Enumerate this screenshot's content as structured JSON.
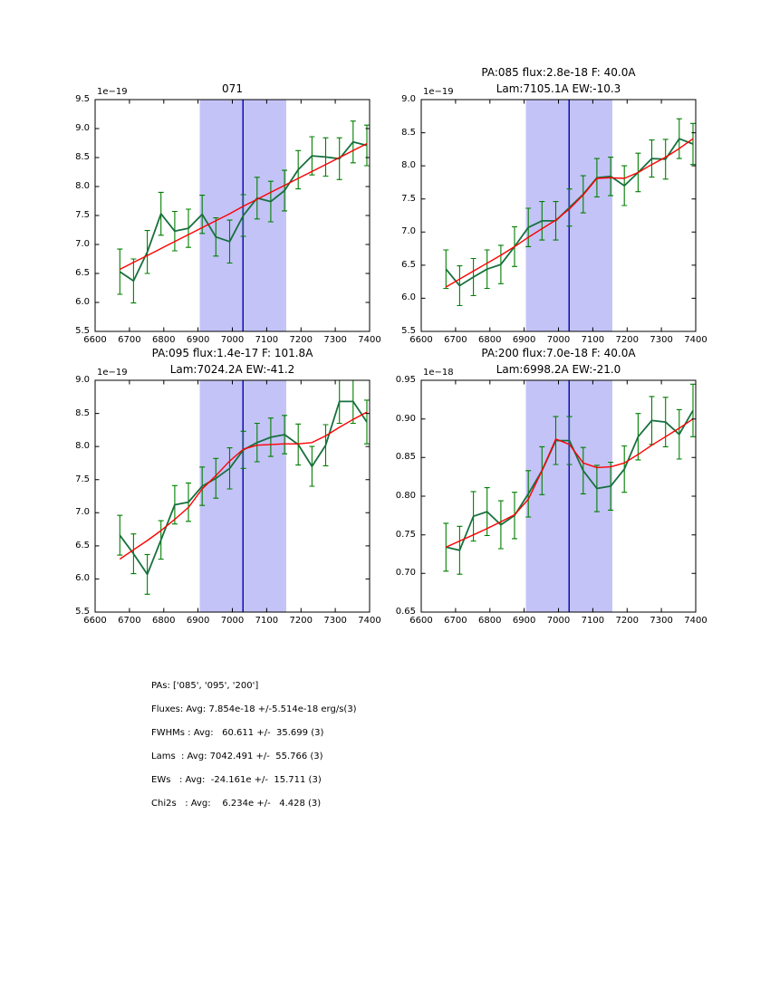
{
  "figure": {
    "background": "#ffffff"
  },
  "colors": {
    "band": "#c3c3f7",
    "vline": "#0000b4",
    "spectrum": "#17703e",
    "errorbar": "#007f00",
    "fit": "#ff0000",
    "frame": "#000000",
    "text": "#000000"
  },
  "summary": {
    "lines": [
      "PAs: ['085', '095', '200']",
      "Fluxes: Avg: 7.854e-18 +/-5.514e-18 erg/s(3)",
      "FWHMs : Avg:   60.611 +/-  35.699 (3)",
      "Lams  : Avg: 7042.491 +/-  55.766 (3)",
      "EWs   : Avg:  -24.161e +/-  15.711 (3)",
      "Chi2s   : Avg:    6.234e +/-   4.428 (3)"
    ]
  },
  "chart_data": [
    {
      "type": "line",
      "title_lines": [
        "071"
      ],
      "offset_label": "1e−19",
      "xlim": [
        6600,
        7400
      ],
      "ylim": [
        5.5,
        9.5
      ],
      "grid": false,
      "x_ticks": [
        6600,
        6700,
        6800,
        6900,
        7000,
        7100,
        7200,
        7300,
        7400
      ],
      "x_tick_labels": [
        "6600",
        "6700",
        "6800",
        "6900",
        "7000",
        "7100",
        "7200",
        "7300",
        "7400"
      ],
      "y_ticks": [
        5.5,
        6.0,
        6.5,
        7.0,
        7.5,
        8.0,
        8.5,
        9.0,
        9.5
      ],
      "y_tick_labels": [
        "5.5",
        "6.0",
        "6.5",
        "7.0",
        "7.5",
        "8.0",
        "8.5",
        "9.0",
        "9.5"
      ],
      "band": [
        6905,
        7157
      ],
      "vline": 7031,
      "x": [
        6672,
        6712,
        6752,
        6792,
        6832,
        6872,
        6912,
        6952,
        6992,
        7032,
        7072,
        7112,
        7152,
        7192,
        7232,
        7272,
        7312,
        7352,
        7392
      ],
      "series": [
        {
          "name": "spectrum",
          "values": [
            6.53,
            6.37,
            6.87,
            7.53,
            7.23,
            7.28,
            7.52,
            7.13,
            7.05,
            7.5,
            7.8,
            7.74,
            7.93,
            8.29,
            8.53,
            8.51,
            8.48,
            8.77,
            8.71
          ],
          "errors": [
            0.39,
            0.38,
            0.37,
            0.37,
            0.34,
            0.33,
            0.33,
            0.33,
            0.37,
            0.36,
            0.36,
            0.35,
            0.35,
            0.33,
            0.33,
            0.33,
            0.36,
            0.36,
            0.35
          ]
        },
        {
          "name": "fit",
          "values": [
            6.57,
            6.69,
            6.81,
            6.93,
            7.05,
            7.17,
            7.29,
            7.41,
            7.53,
            7.66,
            7.78,
            7.9,
            8.02,
            8.14,
            8.26,
            8.38,
            8.5,
            8.62,
            8.74
          ]
        }
      ]
    },
    {
      "type": "line",
      "title_lines": [
        "PA:085 flux:2.8e-18 F: 40.0A",
        "Lam:7105.1A EW:-10.3"
      ],
      "offset_label": "1e−19",
      "xlim": [
        6600,
        7400
      ],
      "ylim": [
        5.5,
        9.0
      ],
      "grid": false,
      "x_ticks": [
        6600,
        6700,
        6800,
        6900,
        7000,
        7100,
        7200,
        7300,
        7400
      ],
      "x_tick_labels": [
        "6600",
        "6700",
        "6800",
        "6900",
        "7000",
        "7100",
        "7200",
        "7300",
        "7400"
      ],
      "y_ticks": [
        5.5,
        6.0,
        6.5,
        7.0,
        7.5,
        8.0,
        8.5,
        9.0
      ],
      "y_tick_labels": [
        "5.5",
        "6.0",
        "6.5",
        "7.0",
        "7.5",
        "8.0",
        "8.5",
        "9.0"
      ],
      "band": [
        6905,
        7157
      ],
      "vline": 7031,
      "x": [
        6672,
        6712,
        6752,
        6792,
        6832,
        6872,
        6912,
        6952,
        6992,
        7032,
        7072,
        7112,
        7152,
        7192,
        7232,
        7272,
        7312,
        7352,
        7392
      ],
      "series": [
        {
          "name": "spectrum",
          "values": [
            6.44,
            6.19,
            6.32,
            6.44,
            6.51,
            6.78,
            7.07,
            7.17,
            7.17,
            7.37,
            7.57,
            7.82,
            7.84,
            7.7,
            7.9,
            8.11,
            8.1,
            8.41,
            8.33
          ],
          "errors": [
            0.29,
            0.3,
            0.28,
            0.29,
            0.29,
            0.3,
            0.29,
            0.29,
            0.29,
            0.28,
            0.28,
            0.29,
            0.29,
            0.3,
            0.29,
            0.28,
            0.3,
            0.3,
            0.31
          ]
        },
        {
          "name": "fit",
          "values": [
            6.17,
            6.29,
            6.41,
            6.53,
            6.65,
            6.78,
            6.92,
            7.05,
            7.18,
            7.35,
            7.56,
            7.81,
            7.82,
            7.81,
            7.9,
            8.02,
            8.13,
            8.26,
            8.41
          ]
        }
      ]
    },
    {
      "type": "line",
      "title_lines": [
        "PA:095 flux:1.4e-17 F: 101.8A",
        "Lam:7024.2A EW:-41.2"
      ],
      "offset_label": "1e−19",
      "xlim": [
        6600,
        7400
      ],
      "ylim": [
        5.5,
        9.0
      ],
      "grid": false,
      "x_ticks": [
        6600,
        6700,
        6800,
        6900,
        7000,
        7100,
        7200,
        7300,
        7400
      ],
      "x_tick_labels": [
        "6600",
        "6700",
        "6800",
        "6900",
        "7000",
        "7100",
        "7200",
        "7300",
        "7400"
      ],
      "y_ticks": [
        5.5,
        6.0,
        6.5,
        7.0,
        7.5,
        8.0,
        8.5,
        9.0
      ],
      "y_tick_labels": [
        "5.5",
        "6.0",
        "6.5",
        "7.0",
        "7.5",
        "8.0",
        "8.5",
        "9.0"
      ],
      "band": [
        6905,
        7157
      ],
      "vline": 7031,
      "x": [
        6672,
        6712,
        6752,
        6792,
        6832,
        6872,
        6912,
        6952,
        6992,
        7032,
        7072,
        7112,
        7152,
        7192,
        7232,
        7272,
        7312,
        7352,
        7392
      ],
      "series": [
        {
          "name": "spectrum",
          "values": [
            6.66,
            6.38,
            6.07,
            6.59,
            7.12,
            7.16,
            7.4,
            7.52,
            7.67,
            7.95,
            8.06,
            8.14,
            8.18,
            8.03,
            7.7,
            8.02,
            8.68,
            8.68,
            8.37
          ],
          "errors": [
            0.3,
            0.3,
            0.3,
            0.29,
            0.29,
            0.29,
            0.29,
            0.3,
            0.31,
            0.28,
            0.29,
            0.29,
            0.29,
            0.31,
            0.3,
            0.31,
            0.33,
            0.33,
            0.33
          ]
        },
        {
          "name": "fit",
          "values": [
            6.3,
            6.44,
            6.58,
            6.73,
            6.9,
            7.08,
            7.36,
            7.56,
            7.78,
            7.96,
            8.02,
            8.03,
            8.04,
            8.04,
            8.06,
            8.16,
            8.29,
            8.41,
            8.52
          ]
        }
      ]
    },
    {
      "type": "line",
      "title_lines": [
        "PA:200 flux:7.0e-18 F: 40.0A",
        "Lam:6998.2A EW:-21.0"
      ],
      "offset_label": "1e−18",
      "xlim": [
        6600,
        7400
      ],
      "ylim": [
        0.65,
        0.95
      ],
      "grid": false,
      "x_ticks": [
        6600,
        6700,
        6800,
        6900,
        7000,
        7100,
        7200,
        7300,
        7400
      ],
      "x_tick_labels": [
        "6600",
        "6700",
        "6800",
        "6900",
        "7000",
        "7100",
        "7200",
        "7300",
        "7400"
      ],
      "y_ticks": [
        0.65,
        0.7,
        0.75,
        0.8,
        0.85,
        0.9,
        0.95
      ],
      "y_tick_labels": [
        "0.65",
        "0.70",
        "0.75",
        "0.80",
        "0.85",
        "0.90",
        "0.95"
      ],
      "band": [
        6905,
        7157
      ],
      "vline": 7031,
      "x": [
        6672,
        6712,
        6752,
        6792,
        6832,
        6872,
        6912,
        6952,
        6992,
        7032,
        7072,
        7112,
        7152,
        7192,
        7232,
        7272,
        7312,
        7352,
        7392
      ],
      "series": [
        {
          "name": "spectrum",
          "values": [
            0.734,
            0.73,
            0.774,
            0.78,
            0.763,
            0.775,
            0.803,
            0.833,
            0.872,
            0.872,
            0.833,
            0.81,
            0.813,
            0.835,
            0.877,
            0.898,
            0.896,
            0.88,
            0.911
          ],
          "errors": [
            0.031,
            0.031,
            0.032,
            0.031,
            0.031,
            0.03,
            0.03,
            0.031,
            0.031,
            0.031,
            0.03,
            0.03,
            0.031,
            0.03,
            0.03,
            0.031,
            0.032,
            0.032,
            0.034
          ]
        },
        {
          "name": "fit",
          "values": [
            0.734,
            0.742,
            0.75,
            0.758,
            0.767,
            0.776,
            0.796,
            0.833,
            0.874,
            0.867,
            0.843,
            0.837,
            0.838,
            0.843,
            0.854,
            0.866,
            0.877,
            0.888,
            0.9
          ]
        }
      ]
    }
  ]
}
